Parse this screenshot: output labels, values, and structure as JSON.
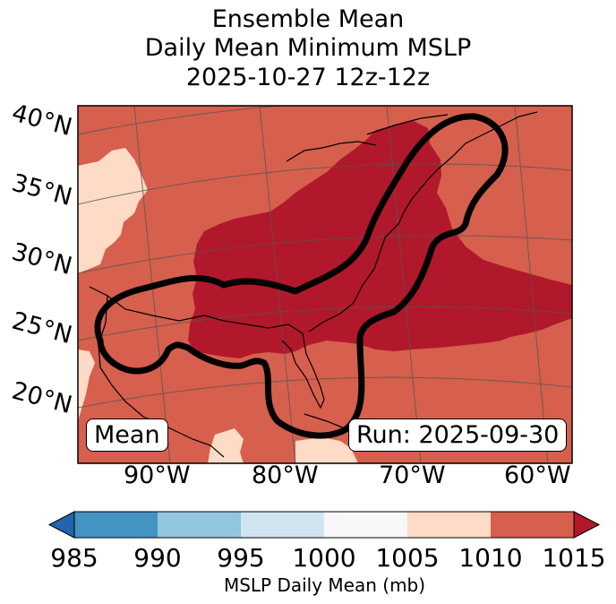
{
  "title": {
    "line1": "Ensemble Mean",
    "line2": "Daily Mean Minimum MSLP",
    "line3": "2025-10-27 12z-12z"
  },
  "map": {
    "lat_labels": [
      "40°N",
      "35°N",
      "30°N",
      "25°N",
      "20°N"
    ],
    "lon_labels": [
      "90°W",
      "80°W",
      "70°W",
      "60°W"
    ],
    "mean_label": "Mean",
    "run_label": "Run: 2025-09-30"
  },
  "colorbar": {
    "ticks": [
      "985",
      "990",
      "995",
      "1000",
      "1005",
      "1010",
      "1015"
    ],
    "colors": [
      "#2166ac",
      "#4393c3",
      "#92c5de",
      "#d1e5f0",
      "#f7f7f7",
      "#fddbc7",
      "#d6604d",
      "#b2182b"
    ],
    "label": "MSLP Daily Mean (mb)"
  }
}
